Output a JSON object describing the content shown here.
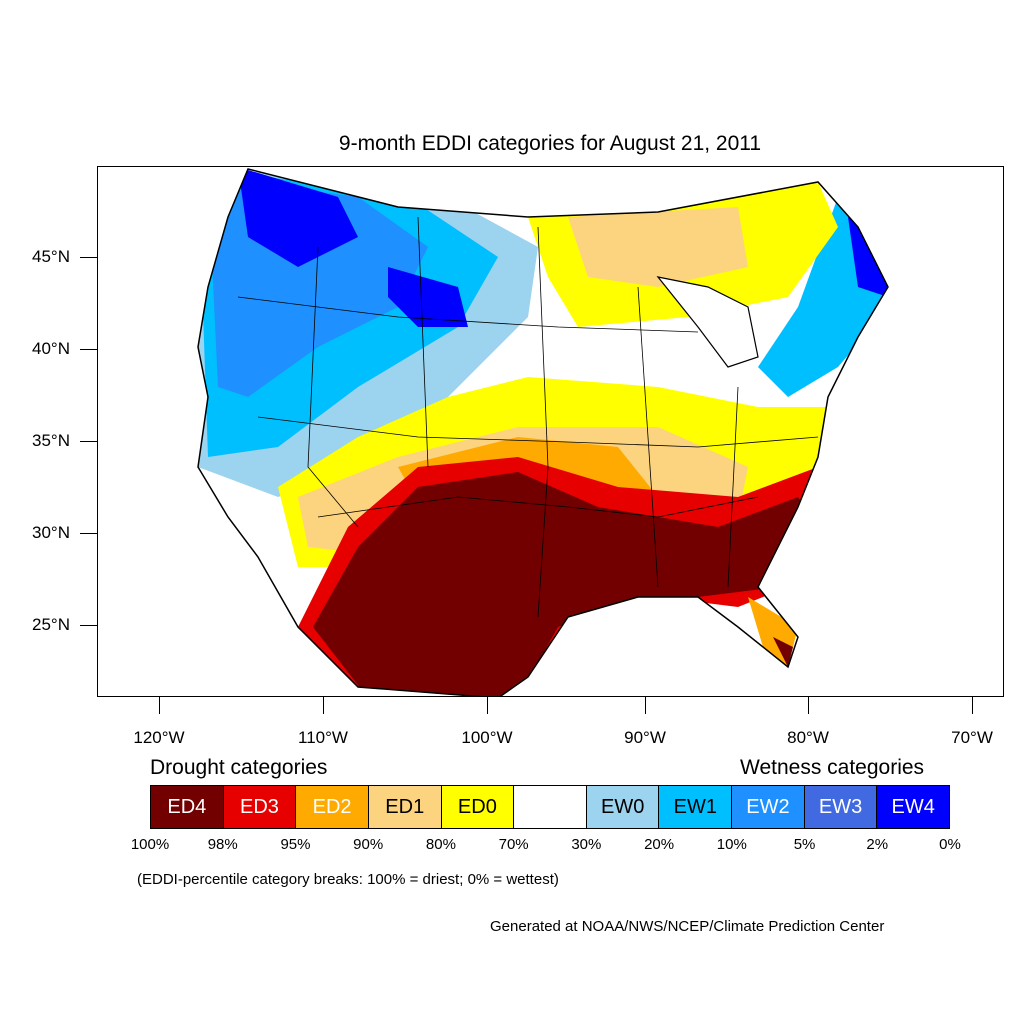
{
  "title": "9-month EDDI categories for August 21, 2011",
  "lat_labels": [
    "45°N",
    "40°N",
    "35°N",
    "30°N",
    "25°N"
  ],
  "lon_labels": [
    "120°W",
    "110°W",
    "100°W",
    "90°W",
    "80°W",
    "70°W"
  ],
  "legend": {
    "drought_heading": "Drought categories",
    "wetness_heading": "Wetness categories",
    "categories": [
      {
        "label": "ED4",
        "color": "#730000",
        "text_color": "#ffffff"
      },
      {
        "label": "ED3",
        "color": "#e60000",
        "text_color": "#ffffff"
      },
      {
        "label": "ED2",
        "color": "#ffaa00",
        "text_color": "#ffffff"
      },
      {
        "label": "ED1",
        "color": "#fcd37f",
        "text_color": "#000000"
      },
      {
        "label": "ED0",
        "color": "#ffff00",
        "text_color": "#000000"
      },
      {
        "label": "",
        "color": "#ffffff",
        "text_color": "#000000"
      },
      {
        "label": "EW0",
        "color": "#9cd3ef",
        "text_color": "#000000"
      },
      {
        "label": "EW1",
        "color": "#00bfff",
        "text_color": "#000000"
      },
      {
        "label": "EW2",
        "color": "#1e90ff",
        "text_color": "#ffffff"
      },
      {
        "label": "EW3",
        "color": "#4169e1",
        "text_color": "#ffffff"
      },
      {
        "label": "EW4",
        "color": "#0000ff",
        "text_color": "#ffffff"
      }
    ],
    "percentiles": [
      "100%",
      "98%",
      "95%",
      "90%",
      "80%",
      "70%",
      "30%",
      "20%",
      "10%",
      "5%",
      "2%",
      "0%"
    ]
  },
  "note": "(EDDI-percentile category breaks: 100% = driest; 0% = wettest)",
  "credit": "Generated at NOAA/NWS/NCEP/Climate Prediction Center"
}
